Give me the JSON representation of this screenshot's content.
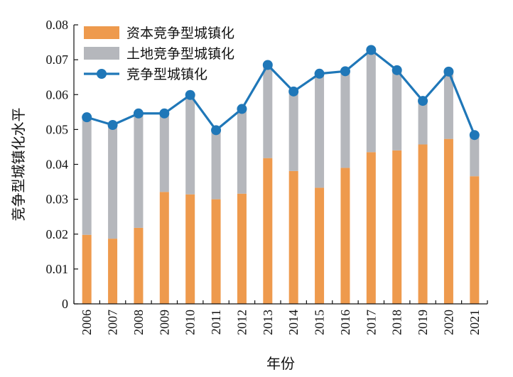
{
  "chart_data": {
    "type": "bar",
    "stacked": true,
    "categories": [
      "2006",
      "2007",
      "2008",
      "2009",
      "2010",
      "2011",
      "2012",
      "2013",
      "2014",
      "2015",
      "2016",
      "2017",
      "2018",
      "2019",
      "2020",
      "2021"
    ],
    "series": [
      {
        "name": "资本竞争型城镇化",
        "kind": "bar",
        "color": "#EE9A4D",
        "values": [
          0.0198,
          0.0187,
          0.0218,
          0.0321,
          0.0314,
          0.03,
          0.0316,
          0.0418,
          0.0381,
          0.0333,
          0.039,
          0.0435,
          0.044,
          0.0457,
          0.0473,
          0.0366
        ]
      },
      {
        "name": "土地竞争型城镇化",
        "kind": "bar",
        "color": "#B5B7BC",
        "values": [
          0.0337,
          0.0326,
          0.0328,
          0.0225,
          0.0285,
          0.0198,
          0.0243,
          0.0267,
          0.0228,
          0.0327,
          0.0277,
          0.0293,
          0.023,
          0.0125,
          0.0193,
          0.0118
        ]
      },
      {
        "name": "竞争型城镇化",
        "kind": "line",
        "color": "#1F77B8",
        "values": [
          0.0535,
          0.0513,
          0.0546,
          0.0546,
          0.0599,
          0.0498,
          0.0559,
          0.0685,
          0.0609,
          0.066,
          0.0667,
          0.0728,
          0.067,
          0.0582,
          0.0666,
          0.0484
        ]
      }
    ],
    "xlabel": "年份",
    "ylabel": "竞争型城镇化水平",
    "ylim": [
      0,
      0.08
    ],
    "yticks": [
      0,
      0.01,
      0.02,
      0.03,
      0.04,
      0.05,
      0.06,
      0.07,
      0.08
    ],
    "ytick_labels": [
      "0",
      "0.01",
      "0.02",
      "0.03",
      "0.04",
      "0.05",
      "0.06",
      "0.07",
      "0.08"
    ],
    "grid": false,
    "legend_position": "top-left"
  }
}
